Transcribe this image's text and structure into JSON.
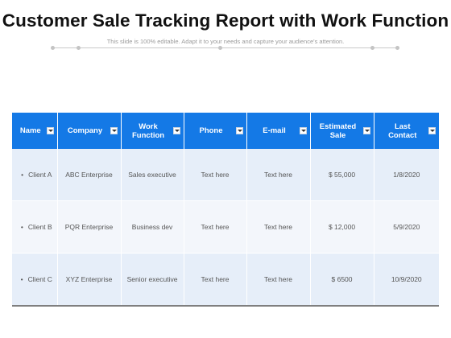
{
  "header": {
    "title": "Customer Sale Tracking Report with Work Function",
    "subtitle": "This slide is 100% editable. Adapt it to your needs and capture your audience's attention."
  },
  "table": {
    "columns": [
      "Name",
      "Company",
      "Work Function",
      "Phone",
      "E-mail",
      "Estimated Sale",
      "Last Contact"
    ],
    "rows": [
      [
        "Client A",
        "ABC Enterprise",
        "Sales executive",
        "Text here",
        "Text here",
        "$ 55,000",
        "1/8/2020"
      ],
      [
        "Client B",
        "PQR Enterprise",
        "Business dev",
        "Text here",
        "Text here",
        "$ 12,000",
        "5/9/2020"
      ],
      [
        "Client C",
        "XYZ Enterprise",
        "Senior executive",
        "Text here",
        "Text here",
        "$ 6500",
        "10/9/2020"
      ]
    ]
  },
  "colors": {
    "header_blue": "#1479e6",
    "row_light": "#e6eef9",
    "row_lighter": "#f3f6fb"
  },
  "icons": {
    "filter": "filter-dropdown-icon",
    "bullet": "bullet-dot-icon"
  }
}
